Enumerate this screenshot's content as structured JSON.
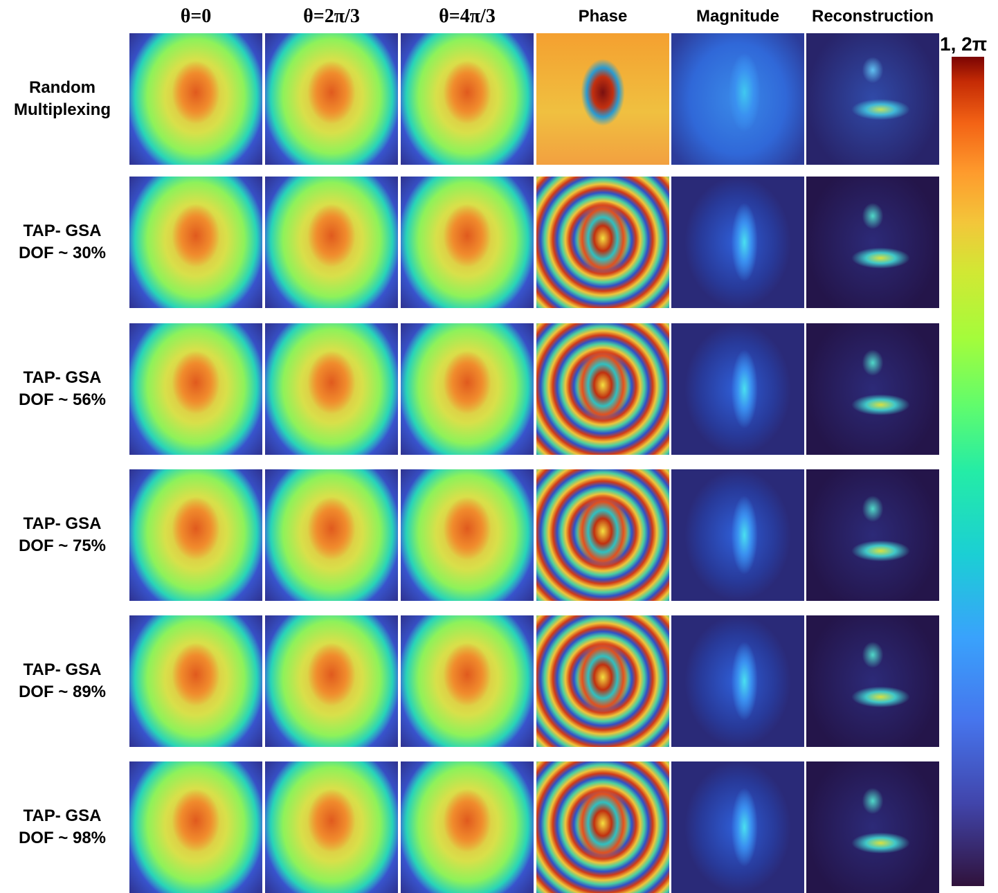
{
  "columns": [
    "θ=0",
    "θ=2π/3",
    "θ=4π/3",
    "Phase",
    "Magnitude",
    "Reconstruction"
  ],
  "rows": [
    {
      "lines": [
        "Random",
        "Multiplexing"
      ]
    },
    {
      "lines": [
        "TAP- GSA",
        "DOF ~ 30%"
      ]
    },
    {
      "lines": [
        "TAP- GSA",
        "DOF ~ 56%"
      ]
    },
    {
      "lines": [
        "TAP- GSA",
        "DOF ~ 75%"
      ]
    },
    {
      "lines": [
        "TAP- GSA",
        "DOF ~ 89%"
      ]
    },
    {
      "lines": [
        "TAP- GSA",
        "DOF ~ 98%"
      ]
    }
  ],
  "colorbar": {
    "label": "1, 2π"
  }
}
